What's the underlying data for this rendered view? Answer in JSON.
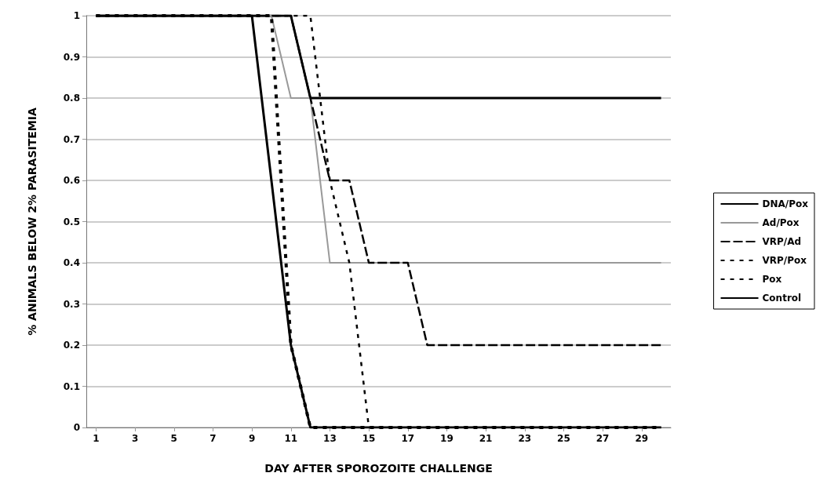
{
  "chart_data": {
    "type": "line",
    "xlabel": "DAY AFTER SPOROZOITE CHALLENGE",
    "ylabel": "% ANIMALS BELOW 2% PARASITEMIA",
    "x": [
      1,
      2,
      3,
      4,
      5,
      6,
      7,
      8,
      9,
      10,
      11,
      12,
      13,
      14,
      15,
      16,
      17,
      18,
      19,
      20,
      21,
      22,
      23,
      24,
      25,
      26,
      27,
      28,
      29,
      30
    ],
    "xlim": [
      0.5,
      30.5
    ],
    "xticks": [
      1,
      3,
      5,
      7,
      9,
      11,
      13,
      15,
      17,
      19,
      21,
      23,
      25,
      27,
      29
    ],
    "series": [
      {
        "name": "DNA/Pox",
        "color": "#000000",
        "line_style": "solid",
        "values": [
          1,
          1,
          1,
          1,
          1,
          1,
          1,
          1,
          1,
          1,
          1,
          0.8,
          0.8,
          0.8,
          0.8,
          0.8,
          0.8,
          0.8,
          0.8,
          0.8,
          0.8,
          0.8,
          0.8,
          0.8,
          0.8,
          0.8,
          0.8,
          0.8,
          0.8,
          0.8
        ]
      },
      {
        "name": "Ad/Pox",
        "color": "#999999",
        "line_style": "solid",
        "values": [
          1,
          1,
          1,
          1,
          1,
          1,
          1,
          1,
          1,
          1,
          0.8,
          0.8,
          0.4,
          0.4,
          0.4,
          0.4,
          0.4,
          0.4,
          0.4,
          0.4,
          0.4,
          0.4,
          0.4,
          0.4,
          0.4,
          0.4,
          0.4,
          0.4,
          0.4,
          0.4
        ]
      },
      {
        "name": "VRP/Ad",
        "color": "#000000",
        "line_style": "dashed",
        "values": [
          1,
          1,
          1,
          1,
          1,
          1,
          1,
          1,
          1,
          1,
          1,
          0.8,
          0.6,
          0.6,
          0.4,
          0.4,
          0.4,
          0.2,
          0.2,
          0.2,
          0.2,
          0.2,
          0.2,
          0.2,
          0.2,
          0.2,
          0.2,
          0.2,
          0.2,
          0.2
        ]
      },
      {
        "name": "VRP/Pox",
        "color": "#000000",
        "line_style": "dotted",
        "values": [
          1,
          1,
          1,
          1,
          1,
          1,
          1,
          1,
          1,
          1,
          1,
          1,
          0.6,
          0.4,
          0,
          0,
          0,
          0,
          0,
          0,
          0,
          0,
          0,
          0,
          0,
          0,
          0,
          0,
          0,
          0
        ]
      },
      {
        "name": "Pox",
        "color": "#000000",
        "line_style": "dotted",
        "values": [
          1,
          1,
          1,
          1,
          1,
          1,
          1,
          1,
          1,
          1,
          0.2,
          0,
          0,
          0,
          0,
          0,
          0,
          0,
          0,
          0,
          0,
          0,
          0,
          0,
          0,
          0,
          0,
          0,
          0,
          0
        ]
      },
      {
        "name": "Control",
        "color": "#000000",
        "line_style": "solid",
        "values": [
          1,
          1,
          1,
          1,
          1,
          1,
          1,
          1,
          1,
          0.6,
          0.2,
          0,
          0,
          0,
          0,
          0,
          0,
          0,
          0,
          0,
          0,
          0,
          0,
          0,
          0,
          0,
          0,
          0,
          0,
          0
        ]
      }
    ],
    "ylim": [
      0,
      1
    ],
    "yticks": [
      0,
      0.1,
      0.2,
      0.3,
      0.4,
      0.5,
      0.6,
      0.7,
      0.8,
      0.9,
      1
    ],
    "grid": "y",
    "legend": "right",
    "marker": "none"
  }
}
